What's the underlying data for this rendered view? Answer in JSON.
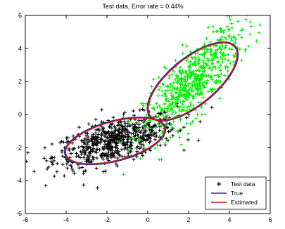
{
  "chart_data": {
    "type": "scatter",
    "title": "Test data, Error rate = 0.44%",
    "xlabel": "",
    "ylabel": "",
    "xlim": [
      -6,
      6
    ],
    "ylim": [
      -6,
      6
    ],
    "xticks": [
      -6,
      -4,
      -2,
      0,
      2,
      4,
      6
    ],
    "yticks": [
      -6,
      -4,
      -2,
      0,
      2,
      4,
      6
    ],
    "grid": false,
    "legend_location": "bottom-right",
    "marker": "+",
    "clusters": [
      {
        "color": "#000000",
        "mean": [
          -1.6,
          -1.6
        ],
        "approx_spread": [
          1.5,
          0.8
        ],
        "approx_correlation": 0.6
      },
      {
        "color": "#00ee00",
        "mean": [
          2.2,
          2.0
        ],
        "approx_spread": [
          1.2,
          1.7
        ],
        "approx_correlation": 0.8
      }
    ],
    "ellipses": [
      {
        "series": "True",
        "color": "#2a2aa8",
        "center": [
          -1.6,
          -1.6
        ],
        "radii": [
          2.6,
          1.2
        ],
        "angle_deg": 20
      },
      {
        "series": "True",
        "color": "#2a2aa8",
        "center": [
          2.2,
          2.0
        ],
        "radii": [
          3.0,
          1.3
        ],
        "angle_deg": 48
      },
      {
        "series": "Estimated",
        "color": "#d21414",
        "center": [
          -1.6,
          -1.6
        ],
        "radii": [
          2.55,
          1.15
        ],
        "angle_deg": 20
      },
      {
        "series": "Estimated",
        "color": "#d21414",
        "center": [
          2.2,
          2.0
        ],
        "radii": [
          2.95,
          1.25
        ],
        "angle_deg": 48
      }
    ],
    "legend": [
      {
        "label": "Test data",
        "kind": "marker",
        "color": "#000000"
      },
      {
        "label": "True",
        "kind": "line",
        "color": "#2a2aa8"
      },
      {
        "label": "Estimated",
        "kind": "line",
        "color": "#d21414"
      }
    ]
  }
}
